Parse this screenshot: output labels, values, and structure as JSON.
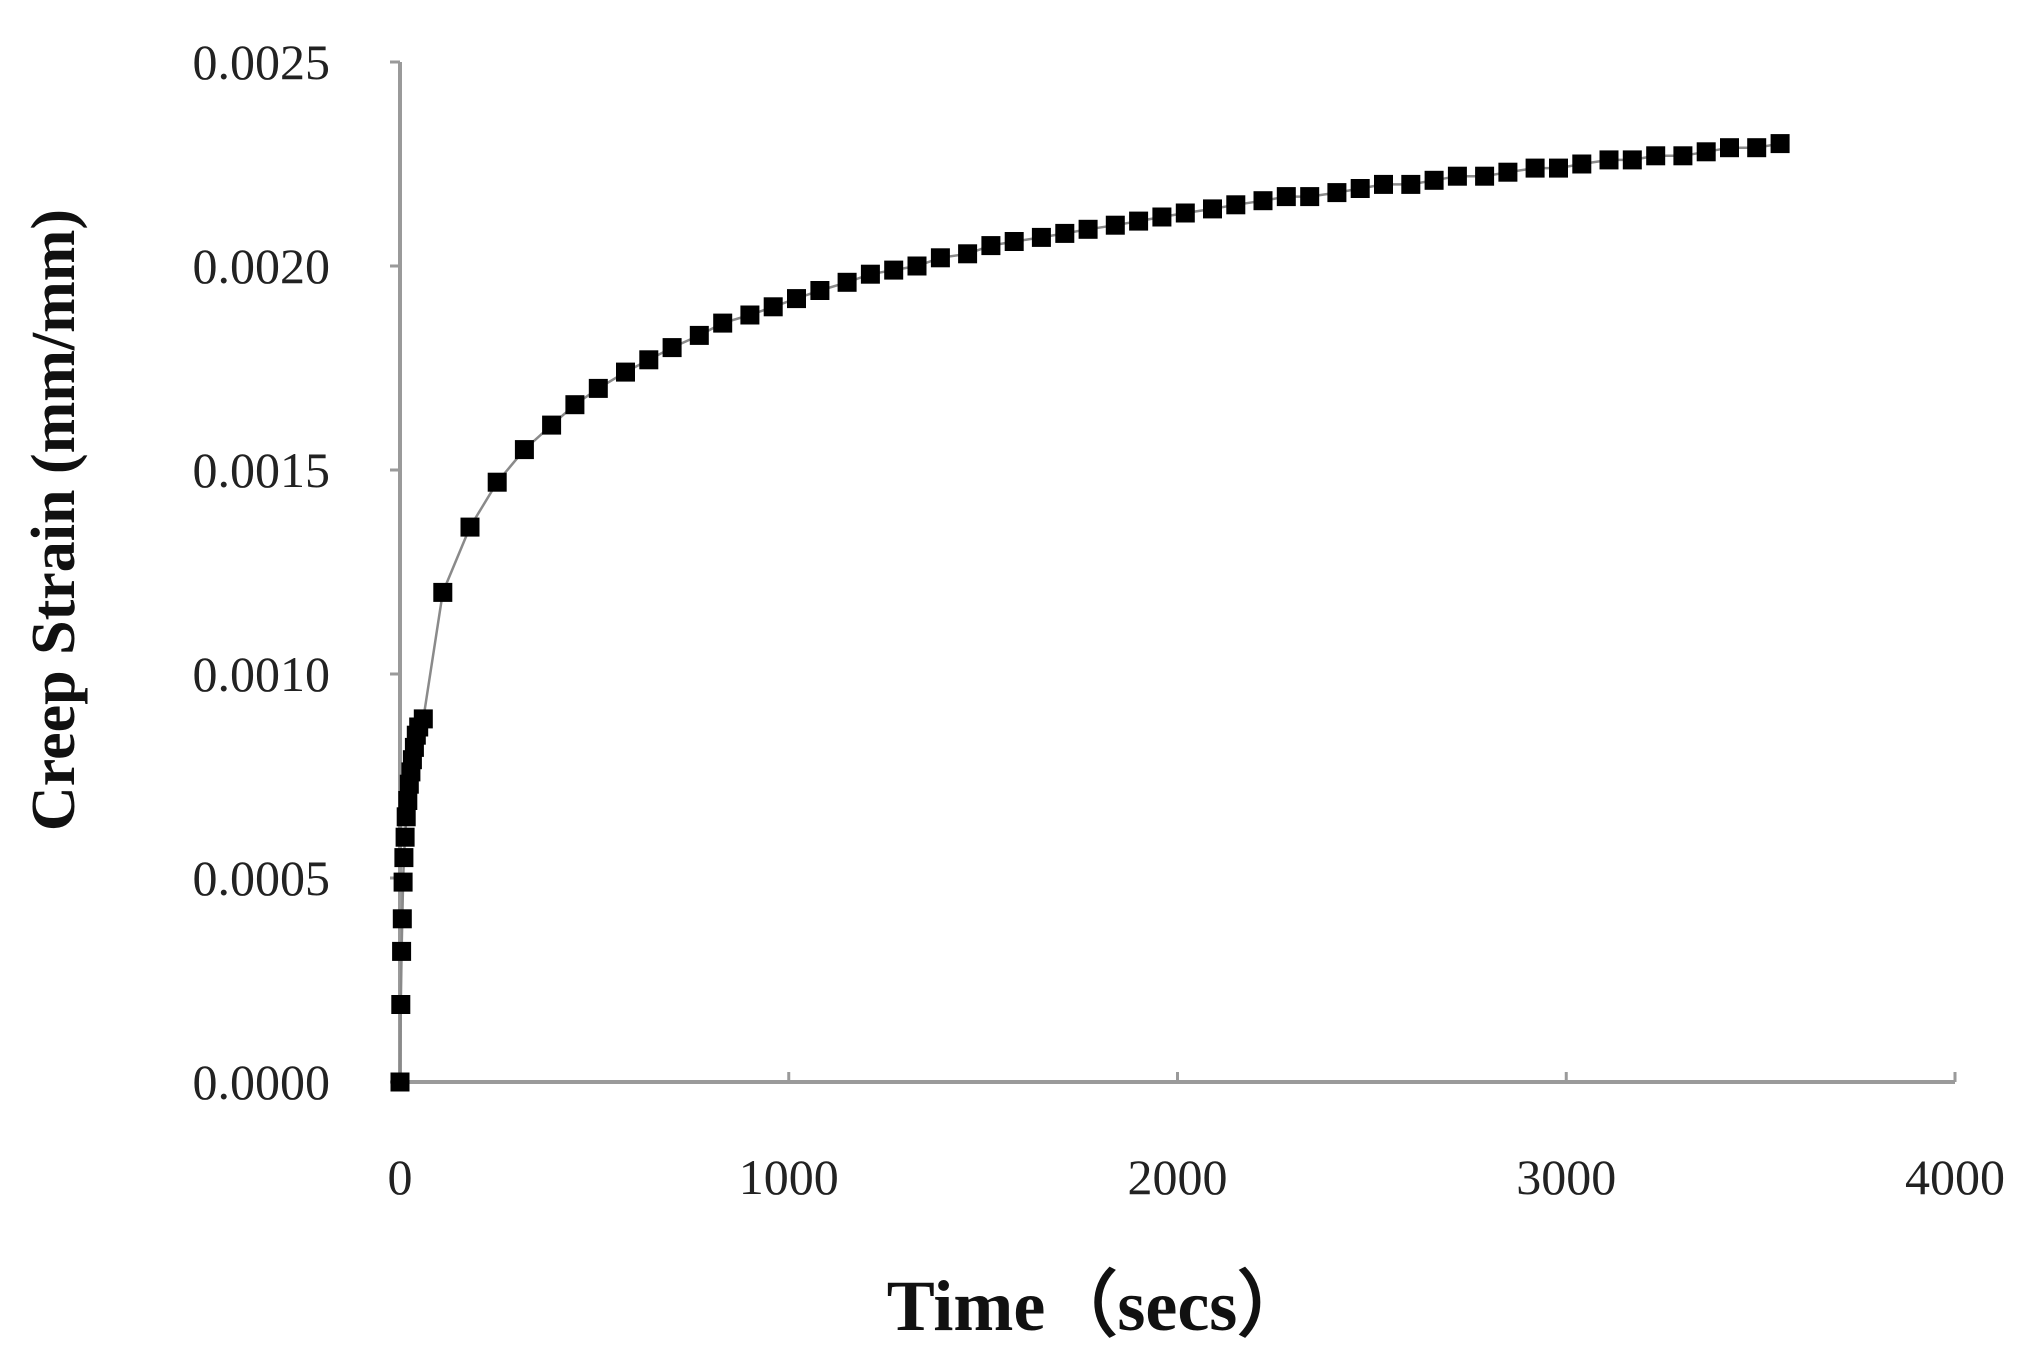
{
  "chart_data": {
    "type": "scatter",
    "title": "",
    "xlabel": "Time（secs）",
    "ylabel": "Creep Strain (mm/mm)",
    "xlim": [
      0,
      4000
    ],
    "ylim": [
      0,
      0.0025
    ],
    "xticks": [
      "0",
      "1000",
      "2000",
      "3000",
      "4000"
    ],
    "yticks": [
      "0.0000",
      "0.0005",
      "0.0010",
      "0.0015",
      "0.0020",
      "0.0025"
    ],
    "grid": false,
    "legend": "none",
    "series": [
      {
        "name": "",
        "color": "#000000",
        "line_color": "#8a8a8a",
        "marker": "square",
        "x": [
          0,
          2,
          4,
          6,
          8,
          10,
          13,
          16,
          20,
          24,
          28,
          32,
          37,
          42,
          48,
          60,
          110,
          180,
          250,
          320,
          390,
          450,
          510,
          580,
          640,
          700,
          770,
          830,
          900,
          960,
          1020,
          1080,
          1150,
          1210,
          1270,
          1330,
          1390,
          1460,
          1520,
          1580,
          1650,
          1710,
          1770,
          1840,
          1900,
          1960,
          2020,
          2090,
          2150,
          2220,
          2280,
          2340,
          2410,
          2470,
          2530,
          2600,
          2660,
          2720,
          2790,
          2850,
          2920,
          2980,
          3040,
          3110,
          3170,
          3230,
          3300,
          3360,
          3420,
          3490,
          3550
        ],
        "y": [
          0.0,
          0.00019,
          0.00032,
          0.0004,
          0.00049,
          0.00055,
          0.0006,
          0.00065,
          0.00069,
          0.00073,
          0.00076,
          0.00079,
          0.00082,
          0.00085,
          0.00087,
          0.00089,
          0.0012,
          0.00136,
          0.00147,
          0.00155,
          0.00161,
          0.00166,
          0.0017,
          0.00174,
          0.00177,
          0.0018,
          0.00183,
          0.00186,
          0.00188,
          0.0019,
          0.00192,
          0.00194,
          0.00196,
          0.00198,
          0.00199,
          0.002,
          0.00202,
          0.00203,
          0.00205,
          0.00206,
          0.00207,
          0.00208,
          0.00209,
          0.0021,
          0.00211,
          0.00212,
          0.00213,
          0.00214,
          0.00215,
          0.00216,
          0.00217,
          0.00217,
          0.00218,
          0.00219,
          0.0022,
          0.0022,
          0.00221,
          0.00222,
          0.00222,
          0.00223,
          0.00224,
          0.00224,
          0.00225,
          0.00226,
          0.00226,
          0.00227,
          0.00227,
          0.00228,
          0.00229,
          0.00229,
          0.0023
        ]
      }
    ]
  }
}
